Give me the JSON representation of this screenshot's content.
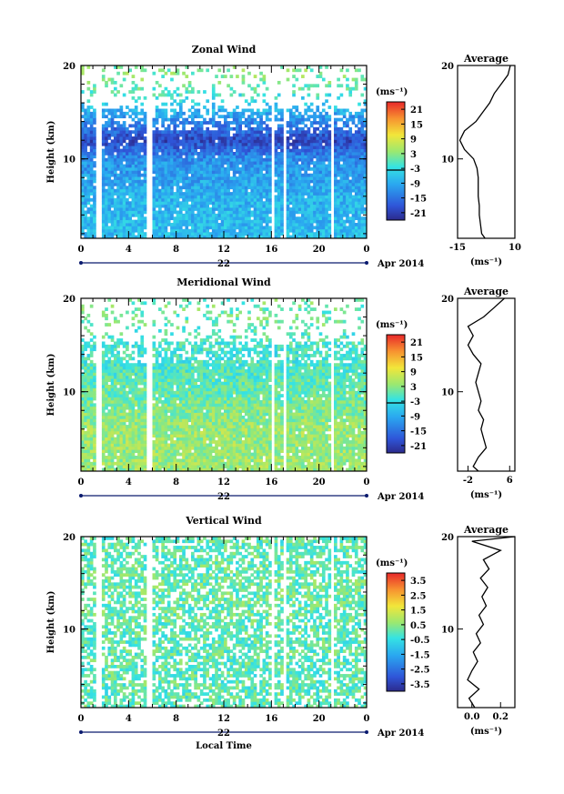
{
  "chart_data": [
    {
      "type": "heatmap",
      "title": "Zonal Wind",
      "xlabel": "",
      "ylabel": "Height (km)",
      "x_ticks": [
        "0",
        "4",
        "8",
        "12",
        "16",
        "20",
        "0"
      ],
      "y_ticks": [
        "10",
        "20"
      ],
      "y_range": [
        1.5,
        20
      ],
      "x_range_hours": [
        0,
        24
      ],
      "date_labels": {
        "day": "22",
        "month_year": "Apr 2014"
      },
      "colorbar": {
        "unit_label": "(ms⁻¹)",
        "ticks": [
          "21",
          "15",
          "9",
          "3",
          "-3",
          "-9",
          "-15",
          "-21"
        ],
        "range": [
          -24,
          24
        ]
      },
      "field_summary": [
        {
          "height_km": 2,
          "value": -7
        },
        {
          "height_km": 6,
          "value": -8
        },
        {
          "height_km": 10,
          "value": -12
        },
        {
          "height_km": 12,
          "value": -20
        },
        {
          "height_km": 18,
          "value": 2
        }
      ],
      "average_profile": {
        "title": "Average",
        "xlabel": "(ms⁻¹)",
        "x_ticks": [
          "-15",
          "10"
        ],
        "x_range": [
          -15,
          10
        ],
        "y_ticks": [
          "10",
          "20"
        ],
        "points": [
          [
            -3,
            1.5
          ],
          [
            -4.5,
            2
          ],
          [
            -5,
            3
          ],
          [
            -5.5,
            4
          ],
          [
            -5.5,
            5
          ],
          [
            -6,
            6
          ],
          [
            -6,
            7
          ],
          [
            -6,
            8
          ],
          [
            -6.5,
            9
          ],
          [
            -8,
            10
          ],
          [
            -12,
            11
          ],
          [
            -14,
            12
          ],
          [
            -12,
            13
          ],
          [
            -7,
            14
          ],
          [
            -4,
            15
          ],
          [
            -1,
            16
          ],
          [
            1,
            17
          ],
          [
            4,
            18
          ],
          [
            7,
            19
          ],
          [
            8,
            20
          ]
        ]
      }
    },
    {
      "type": "heatmap",
      "title": "Meridional Wind",
      "xlabel": "",
      "ylabel": "Height (km)",
      "x_ticks": [
        "0",
        "4",
        "8",
        "12",
        "16",
        "20",
        "0"
      ],
      "y_ticks": [
        "10",
        "20"
      ],
      "y_range": [
        1.5,
        20
      ],
      "x_range_hours": [
        0,
        24
      ],
      "date_labels": {
        "day": "22",
        "month_year": "Apr 2014"
      },
      "colorbar": {
        "unit_label": "(ms⁻¹)",
        "ticks": [
          "21",
          "15",
          "9",
          "3",
          "-3",
          "-9",
          "-15",
          "-21"
        ],
        "range": [
          -24,
          24
        ]
      },
      "field_summary": [
        {
          "height_km": 2,
          "value": 4
        },
        {
          "height_km": 6,
          "value": 4
        },
        {
          "height_km": 10,
          "value": 1
        },
        {
          "height_km": 14,
          "value": -2
        },
        {
          "height_km": 18,
          "value": 1
        }
      ],
      "average_profile": {
        "title": "Average",
        "xlabel": "(ms⁻¹)",
        "x_ticks": [
          "-2",
          "6"
        ],
        "x_range": [
          -4,
          7
        ],
        "y_ticks": [
          "10",
          "20"
        ],
        "points": [
          [
            0,
            1.5
          ],
          [
            -1,
            2
          ],
          [
            0,
            3
          ],
          [
            1.5,
            4
          ],
          [
            1,
            5
          ],
          [
            0.5,
            6
          ],
          [
            1,
            7
          ],
          [
            0,
            8
          ],
          [
            0.5,
            9
          ],
          [
            0,
            10
          ],
          [
            -0.5,
            11
          ],
          [
            0,
            12
          ],
          [
            0.5,
            13
          ],
          [
            -1,
            14
          ],
          [
            -2,
            15
          ],
          [
            -1,
            16
          ],
          [
            -2,
            17
          ],
          [
            1,
            18
          ],
          [
            3,
            19
          ],
          [
            5,
            20
          ]
        ]
      }
    },
    {
      "type": "heatmap",
      "title": "Vertical Wind",
      "xlabel": "Local Time",
      "ylabel": "Height (km)",
      "x_ticks": [
        "0",
        "4",
        "8",
        "12",
        "16",
        "20",
        "0"
      ],
      "y_ticks": [
        "10",
        "20"
      ],
      "y_range": [
        1.5,
        20
      ],
      "x_range_hours": [
        0,
        24
      ],
      "date_labels": {
        "day": "22",
        "month_year": "Apr 2014"
      },
      "colorbar": {
        "unit_label": "(ms⁻¹)",
        "ticks": [
          "3.5",
          "2.5",
          "1.5",
          "0.5",
          "-0.5",
          "-1.5",
          "-2.5",
          "-3.5"
        ],
        "range": [
          -4,
          4
        ]
      },
      "field_summary": [
        {
          "height_km": 2,
          "value": 0
        },
        {
          "height_km": 8,
          "value": 0
        },
        {
          "height_km": 14,
          "value": 0.2
        },
        {
          "height_km": 19,
          "value": 0
        }
      ],
      "average_profile": {
        "title": "Average",
        "xlabel": "(ms⁻¹)",
        "x_ticks": [
          "0.0",
          "0.2"
        ],
        "x_range": [
          -0.1,
          0.3
        ],
        "y_ticks": [
          "10",
          "20"
        ],
        "points": [
          [
            0.02,
            1.5
          ],
          [
            -0.02,
            2.5
          ],
          [
            0.05,
            3.5
          ],
          [
            -0.03,
            4.5
          ],
          [
            0.0,
            5.5
          ],
          [
            0.04,
            6.5
          ],
          [
            0.01,
            7.5
          ],
          [
            0.06,
            8.5
          ],
          [
            0.03,
            9.5
          ],
          [
            0.08,
            10.5
          ],
          [
            0.05,
            11.5
          ],
          [
            0.1,
            12.5
          ],
          [
            0.07,
            13.5
          ],
          [
            0.11,
            14.5
          ],
          [
            0.06,
            15.5
          ],
          [
            0.12,
            16.5
          ],
          [
            0.08,
            17.5
          ],
          [
            0.2,
            18.5
          ],
          [
            0.0,
            19.5
          ],
          [
            0.3,
            20
          ]
        ]
      }
    }
  ]
}
